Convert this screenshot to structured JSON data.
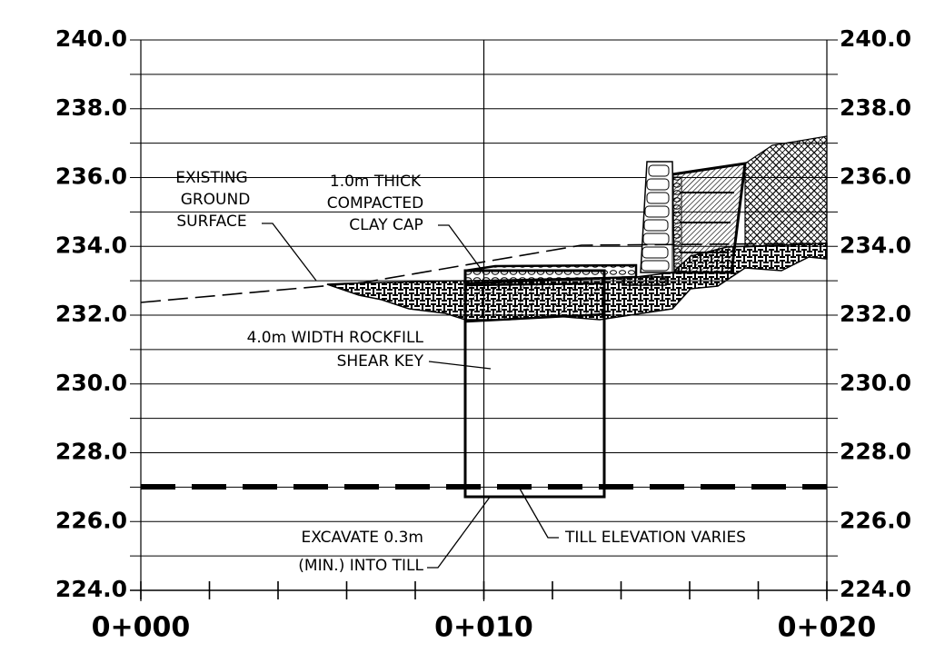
{
  "axes": {
    "left_labels": [
      "240.0",
      "238.0",
      "236.0",
      "234.0",
      "232.0",
      "230.0",
      "228.0",
      "226.0",
      "224.0"
    ],
    "right_labels": [
      "240.0",
      "238.0",
      "236.0",
      "234.0",
      "232.0",
      "230.0",
      "228.0",
      "226.0",
      "224.0"
    ],
    "stations": [
      "0+000",
      "0+010",
      "0+020"
    ]
  },
  "annotations": {
    "existing_ground": [
      "EXISTING",
      "GROUND",
      "SURFACE"
    ],
    "clay_cap": [
      "1.0m THICK",
      "COMPACTED",
      "CLAY CAP"
    ],
    "shear_key": [
      "4.0m WIDTH ROCKFILL",
      "SHEAR KEY"
    ],
    "excavate": [
      "EXCAVATE 0.3m",
      "(MIN.) INTO TILL"
    ],
    "till": [
      "TILL ELEVATION VARIES"
    ]
  }
}
